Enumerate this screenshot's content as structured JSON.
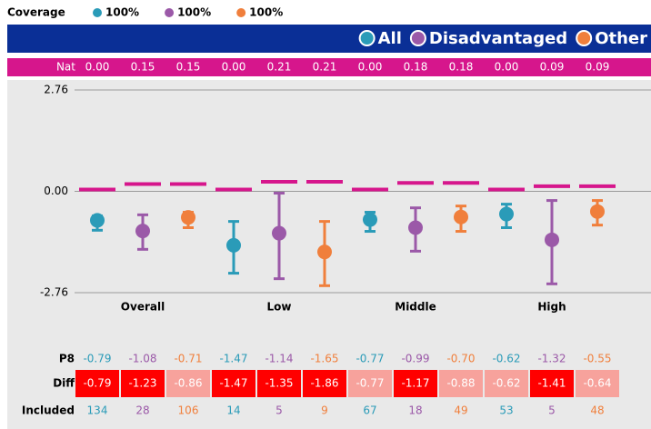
{
  "chart_data": {
    "type": "errorbar",
    "coverage_label": "Coverage",
    "row_labels": {
      "nat": "Nat",
      "p8": "P8",
      "diff": "Diff",
      "included": "Included"
    },
    "categories": [
      "Overall",
      "Low",
      "Middle",
      "High"
    ],
    "ylim": [
      -2.76,
      2.76
    ],
    "yticks": [
      2.76,
      {
        "value": 0,
        "label": "0.00"
      },
      -2.76
    ],
    "nat_color": "#d6168c",
    "series": [
      {
        "name": "All",
        "color": "#2a9bb8",
        "coverage": "100%",
        "values": [
          -0.79,
          -1.47,
          -0.77,
          -0.62
        ],
        "value_labels": [
          "-0.79",
          "-1.47",
          "-0.77",
          "-0.62"
        ],
        "lower": [
          -1.06,
          -2.23,
          -1.09,
          -0.99
        ],
        "upper": [
          -0.67,
          -0.82,
          -0.57,
          -0.35
        ],
        "nat": [
          0,
          0,
          0,
          0
        ],
        "nat_labels": [
          "0.00",
          "0.00",
          "0.00",
          "0.00"
        ],
        "diff": [
          -0.79,
          -1.47,
          -0.77,
          -0.62
        ],
        "diff_colors": [
          "#ff0000",
          "#ff0000",
          "#f7a29c",
          "#f7a29c"
        ],
        "included": [
          134,
          14,
          67,
          53
        ]
      },
      {
        "name": "Disadvantaged",
        "color": "#9b59a8",
        "coverage": "100%",
        "values": [
          -1.08,
          -1.14,
          -0.99,
          -1.32
        ],
        "value_labels": [
          "-1.08",
          "-1.14",
          "-0.99",
          "-1.32"
        ],
        "lower": [
          -1.58,
          -2.38,
          -1.63,
          -2.52
        ],
        "upper": [
          -0.64,
          -0.05,
          -0.45,
          -0.25
        ],
        "nat": [
          0.15,
          0.21,
          0.18,
          0.09
        ],
        "nat_labels": [
          "0.15",
          "0.21",
          "0.18",
          "0.09"
        ],
        "diff": [
          -1.23,
          -1.35,
          -1.17,
          -1.41
        ],
        "diff_colors": [
          "#ff0000",
          "#ff0000",
          "#ff0000",
          "#ff0000"
        ],
        "included": [
          28,
          5,
          18,
          5
        ]
      },
      {
        "name": "Other",
        "color": "#f07f3c",
        "coverage": "100%",
        "values": [
          -0.71,
          -1.65,
          -0.7,
          -0.55
        ],
        "value_labels": [
          "-0.71",
          "-1.65",
          "-0.70",
          "-0.55"
        ],
        "lower": [
          -0.99,
          -2.57,
          -1.09,
          -0.92
        ],
        "upper": [
          -0.57,
          -0.82,
          -0.4,
          -0.25
        ],
        "nat": [
          0.15,
          0.21,
          0.18,
          0.09
        ],
        "nat_labels": [
          "0.15",
          "0.21",
          "0.18",
          "0.09"
        ],
        "diff": [
          -0.86,
          -1.86,
          -0.88,
          -0.64
        ],
        "diff_colors": [
          "#f7a29c",
          "#ff0000",
          "#f7a29c",
          "#f7a29c"
        ],
        "included": [
          106,
          9,
          49,
          48
        ]
      }
    ]
  }
}
